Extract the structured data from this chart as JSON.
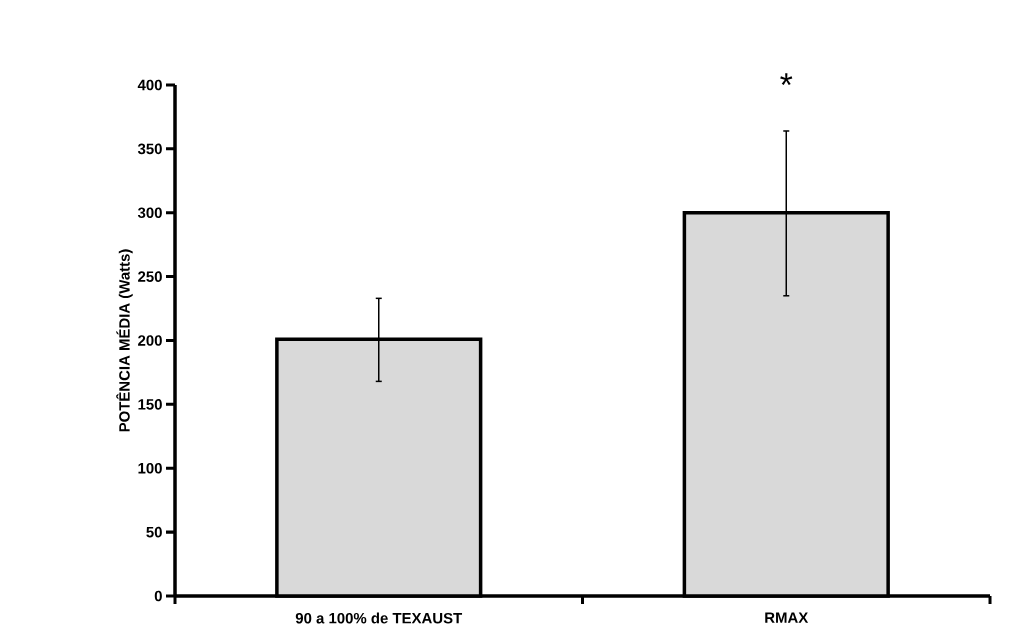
{
  "chart_data": {
    "type": "bar",
    "ylabel": "POTÊNCIA MÉDIA (Watts)",
    "categories": [
      "90 a 100% de TEXAUST",
      "RMAX"
    ],
    "values": [
      201,
      300
    ],
    "errors": [
      [
        168,
        233
      ],
      [
        235,
        364
      ]
    ],
    "color": "#d9d9d9",
    "ylim": [
      0,
      400
    ],
    "yticks": [
      0,
      50,
      100,
      150,
      200,
      250,
      300,
      350,
      400
    ],
    "annotations": [
      "*"
    ],
    "grid": false
  }
}
